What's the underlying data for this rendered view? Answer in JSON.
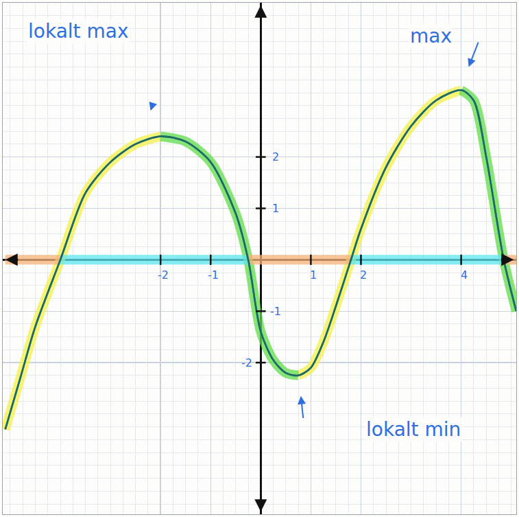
{
  "chart_data": {
    "type": "line",
    "x": [
      -5.1,
      -4.8,
      -4.5,
      -4.0,
      -3.5,
      -3.0,
      -2.5,
      -2.0,
      -1.5,
      -1.0,
      -0.5,
      -0.25,
      0,
      0.25,
      0.5,
      0.75,
      1.0,
      1.25,
      1.5,
      1.8,
      2.0,
      2.5,
      3.0,
      3.5,
      4.0,
      4.25,
      4.5,
      4.85,
      5.1
    ],
    "series": [
      {
        "color": "#f3ef4a",
        "line_style": "highlight",
        "values": [
          -3.3,
          -2.3,
          -1.3,
          0,
          1.3,
          1.9,
          2.25,
          2.4,
          null,
          null,
          null,
          null,
          null,
          null,
          null,
          -2.25,
          -2.1,
          -1.6,
          -0.9,
          0,
          0.6,
          1.8,
          2.6,
          3.1,
          3.3,
          null,
          null,
          null,
          null
        ]
      },
      {
        "color": "#5fdc4a",
        "line_style": "highlight",
        "values": [
          null,
          null,
          null,
          null,
          null,
          null,
          null,
          2.4,
          2.3,
          1.9,
          0.9,
          0,
          -1.4,
          -1.95,
          -2.2,
          -2.25,
          null,
          null,
          null,
          null,
          null,
          null,
          null,
          null,
          3.3,
          3.1,
          2.0,
          0,
          -1.0
        ]
      },
      {
        "color": "#5ee6f0",
        "line_style": "highlight",
        "values": [
          null,
          null,
          null,
          0,
          0,
          0,
          0,
          0,
          0,
          0,
          0,
          0,
          null,
          null,
          null,
          null,
          null,
          null,
          null,
          0,
          0,
          0,
          0,
          0,
          0,
          0,
          0,
          0,
          null
        ]
      },
      {
        "color": "#f6b27a",
        "line_style": "highlight",
        "values": [
          0,
          0,
          0,
          0,
          null,
          null,
          null,
          null,
          null,
          null,
          null,
          0,
          0,
          0,
          0,
          0,
          0,
          0,
          0,
          0,
          null,
          null,
          null,
          null,
          null,
          null,
          null,
          0,
          0
        ]
      },
      {
        "color": "#3b7fe0",
        "line_style": "solid",
        "values": [
          -3.3,
          -2.3,
          -1.3,
          0,
          1.3,
          1.9,
          2.25,
          2.4,
          2.3,
          1.9,
          0.9,
          0,
          -1.4,
          -1.95,
          -2.2,
          -2.25,
          -2.1,
          -1.6,
          -0.9,
          0,
          0.6,
          1.8,
          2.6,
          3.1,
          3.3,
          3.1,
          2.0,
          0,
          -1.0
        ]
      },
      {
        "color": "#1d6b5a",
        "line_style": "solid",
        "values": [
          -3.3,
          -2.3,
          -1.3,
          0,
          1.3,
          1.9,
          2.25,
          2.4,
          2.3,
          1.9,
          0.9,
          0,
          -1.4,
          -1.95,
          -2.2,
          -2.25,
          -2.1,
          -1.6,
          -0.9,
          0,
          0.6,
          1.8,
          2.6,
          3.1,
          3.3,
          3.1,
          2.0,
          0,
          -1.0
        ]
      }
    ],
    "xlim": [
      -5.15,
      5.1
    ],
    "ylim": [
      -4.95,
      5.0
    ],
    "xticks": [
      -2,
      -1,
      1,
      2,
      4
    ],
    "yticks": [
      -2,
      -1,
      1,
      2
    ],
    "grid": true,
    "annotations": [
      "lokalt max",
      "max",
      "lokalt min"
    ]
  }
}
